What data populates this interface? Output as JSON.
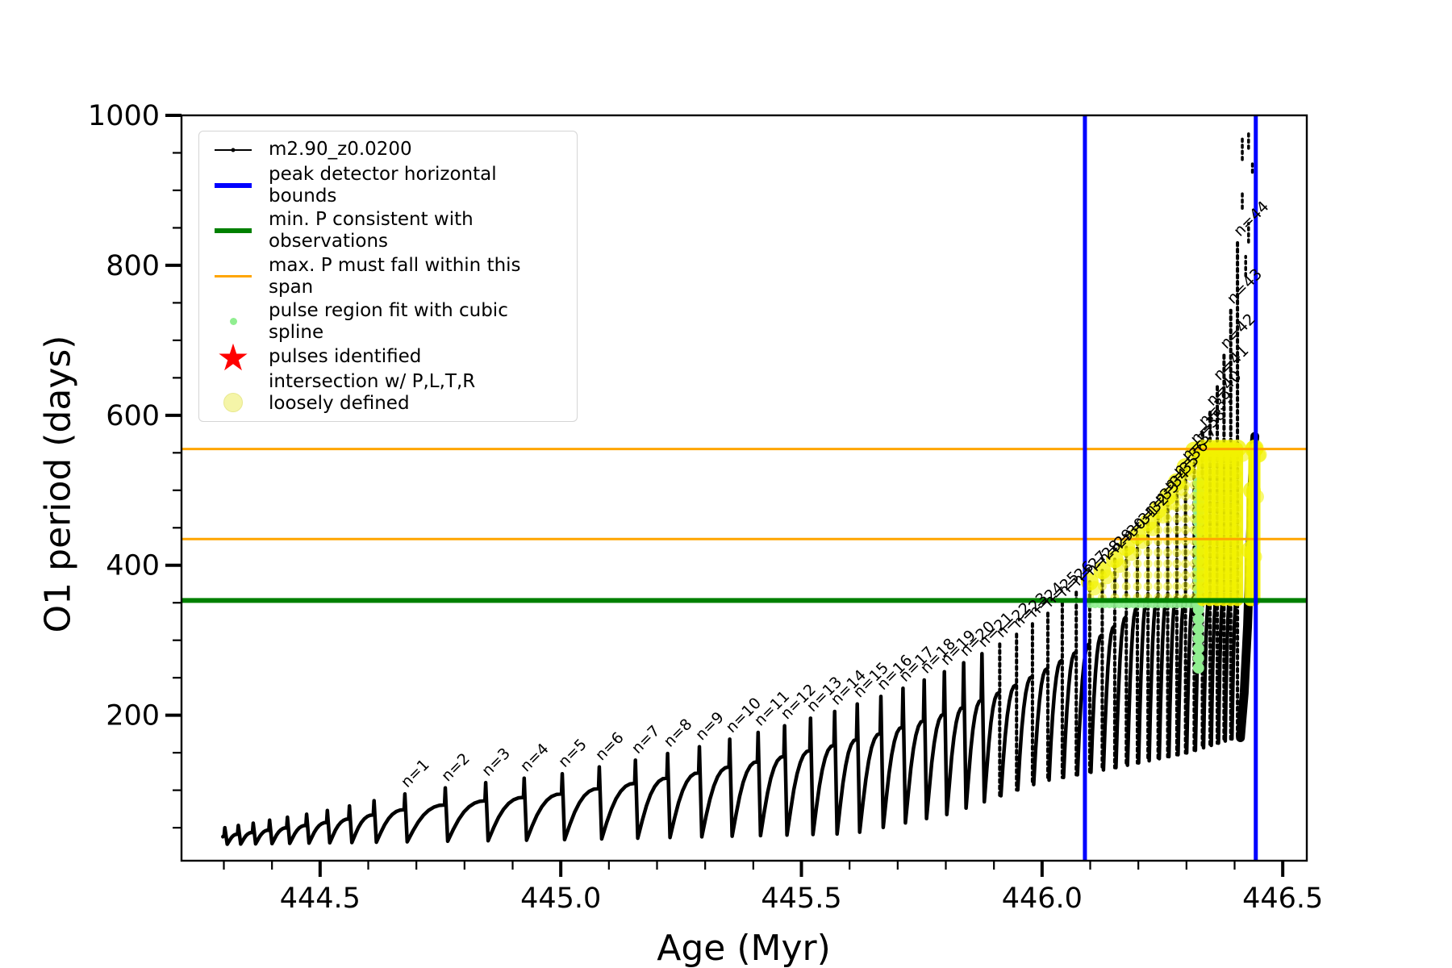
{
  "figure": {
    "xlabel": "Age (Myr)",
    "ylabel": "O1 period (days)",
    "background": "#ffffff"
  },
  "legend": {
    "items": [
      {
        "label": "m2.90_z0.0200",
        "marker": "line-dot",
        "color": "#000000"
      },
      {
        "label": "peak detector horizontal bounds",
        "marker": "thick-line",
        "color": "#0000ff"
      },
      {
        "label": "min. P consistent with observations",
        "marker": "thick-line",
        "color": "#008000"
      },
      {
        "label": "max. P must fall within this span",
        "marker": "med-line",
        "color": "#ffa500"
      },
      {
        "label": "pulse region fit with cubic spline",
        "marker": "dot-small",
        "color": "#90ee90"
      },
      {
        "label": "pulses identified",
        "marker": "star",
        "color": "#ff0000"
      },
      {
        "label": "intersection w/ P,L,T,R\nloosely defined",
        "marker": "dot-large",
        "color": "#f5f5a8"
      }
    ]
  },
  "chart_data": {
    "type": "line",
    "series_label": "m2.90_z0.0200",
    "title": "",
    "xlabel": "Age (Myr)",
    "ylabel": "O1 period (days)",
    "xlim": [
      444.212,
      446.55
    ],
    "ylim": [
      6,
      1000
    ],
    "grid": false,
    "x_major_ticks": [
      444.5,
      445.0,
      445.5,
      446.0,
      446.5
    ],
    "x_tick_labels": [
      "444.5",
      "445.0",
      "445.5",
      "446.0",
      "446.5"
    ],
    "x_minor_step": 0.1,
    "y_major_ticks": [
      200,
      400,
      600,
      800,
      1000
    ],
    "y_tick_labels": [
      "200",
      "400",
      "600",
      "800",
      "1000"
    ],
    "y_minor_step": 50,
    "line_color": "#000000",
    "hlines": [
      {
        "y": 353,
        "color": "#008000",
        "lw": 6,
        "name": "min. P consistent with observations"
      },
      {
        "y": 435,
        "color": "#ffa500",
        "lw": 3,
        "name": "max. P span lower bound"
      },
      {
        "y": 555,
        "color": "#ffa500",
        "lw": 3,
        "name": "max. P span upper bound"
      }
    ],
    "vlines": [
      {
        "x": 446.089,
        "color": "#0000ff",
        "lw": 5,
        "name": "peak detector left bound"
      },
      {
        "x": 446.444,
        "color": "#0000ff",
        "lw": 5,
        "name": "peak detector right bound"
      }
    ],
    "pre_pulses": [
      {
        "age": 444.302,
        "peak": 50
      },
      {
        "age": 444.33,
        "peak": 53
      },
      {
        "age": 444.361,
        "peak": 56
      },
      {
        "age": 444.395,
        "peak": 60
      },
      {
        "age": 444.432,
        "peak": 64
      },
      {
        "age": 444.472,
        "peak": 68
      },
      {
        "age": 444.515,
        "peak": 73
      },
      {
        "age": 444.561,
        "peak": 79
      },
      {
        "age": 444.612,
        "peak": 86
      }
    ],
    "pulses": [
      {
        "n": 1,
        "label": "n=1",
        "age": 444.676,
        "peak": 95
      },
      {
        "n": 2,
        "label": "n=2",
        "age": 444.76,
        "peak": 103
      },
      {
        "n": 3,
        "label": "n=3",
        "age": 444.844,
        "peak": 110
      },
      {
        "n": 4,
        "label": "n=4",
        "age": 444.924,
        "peak": 116
      },
      {
        "n": 5,
        "label": "n=5",
        "age": 445.003,
        "peak": 122
      },
      {
        "n": 6,
        "label": "n=6",
        "age": 445.08,
        "peak": 131
      },
      {
        "n": 7,
        "label": "n=7",
        "age": 445.155,
        "peak": 140
      },
      {
        "n": 8,
        "label": "n=8",
        "age": 445.222,
        "peak": 149
      },
      {
        "n": 9,
        "label": "n=9",
        "age": 445.288,
        "peak": 158
      },
      {
        "n": 10,
        "label": "n=10",
        "age": 445.351,
        "peak": 168
      },
      {
        "n": 11,
        "label": "n=11",
        "age": 445.41,
        "peak": 177
      },
      {
        "n": 12,
        "label": "n=12",
        "age": 445.465,
        "peak": 186
      },
      {
        "n": 13,
        "label": "n=13",
        "age": 445.519,
        "peak": 196
      },
      {
        "n": 14,
        "label": "n=14",
        "age": 445.569,
        "peak": 205
      },
      {
        "n": 15,
        "label": "n=15",
        "age": 445.616,
        "peak": 215
      },
      {
        "n": 16,
        "label": "n=16",
        "age": 445.665,
        "peak": 225
      },
      {
        "n": 17,
        "label": "n=17",
        "age": 445.711,
        "peak": 236
      },
      {
        "n": 18,
        "label": "n=18",
        "age": 445.755,
        "peak": 247
      },
      {
        "n": 19,
        "label": "n=19",
        "age": 445.797,
        "peak": 258
      },
      {
        "n": 20,
        "label": "n=20",
        "age": 445.837,
        "peak": 270
      },
      {
        "n": 21,
        "label": "n=21",
        "age": 445.875,
        "peak": 282
      },
      {
        "n": 22,
        "label": "n=22",
        "age": 445.912,
        "peak": 295
      },
      {
        "n": 23,
        "label": "n=23",
        "age": 445.947,
        "peak": 308
      },
      {
        "n": 24,
        "label": "n=24",
        "age": 445.98,
        "peak": 322
      },
      {
        "n": 25,
        "label": "n=25",
        "age": 446.012,
        "peak": 336
      },
      {
        "n": 26,
        "label": "n=26",
        "age": 446.042,
        "peak": 350
      },
      {
        "n": 27,
        "label": "n=27",
        "age": 446.071,
        "peak": 364
      },
      {
        "n": 28,
        "label": "n=28",
        "age": 446.099,
        "peak": 378
      },
      {
        "n": 29,
        "label": "n=29",
        "age": 446.125,
        "peak": 393
      },
      {
        "n": 30,
        "label": "n=30",
        "age": 446.151,
        "peak": 408
      },
      {
        "n": 31,
        "label": "n=31",
        "age": 446.175,
        "peak": 424
      },
      {
        "n": 32,
        "label": "n=32",
        "age": 446.198,
        "peak": 440
      },
      {
        "n": 33,
        "label": "n=33",
        "age": 446.22,
        "peak": 457
      },
      {
        "n": 34,
        "label": "n=34",
        "age": 446.241,
        "peak": 474
      },
      {
        "n": 35,
        "label": "n=35",
        "age": 446.261,
        "peak": 492
      },
      {
        "n": 36,
        "label": "n=36",
        "age": 446.28,
        "peak": 511
      },
      {
        "n": 37,
        "label": "n=37",
        "age": 446.298,
        "peak": 531
      },
      {
        "n": 38,
        "label": "n=38",
        "age": 446.316,
        "peak": 553
      },
      {
        "n": 39,
        "label": "n=39",
        "age": 446.333,
        "peak": 577
      },
      {
        "n": 40,
        "label": "n=40",
        "age": 446.349,
        "peak": 604
      },
      {
        "n": 41,
        "label": "n=41",
        "age": 446.364,
        "peak": 638
      },
      {
        "n": 42,
        "label": "n=42",
        "age": 446.378,
        "peak": 680
      },
      {
        "n": 43,
        "label": "n=43",
        "age": 446.392,
        "peak": 740
      },
      {
        "n": 44,
        "label": "n=44",
        "age": 446.406,
        "peak": 830
      }
    ],
    "dip_profile": [
      [
        444.3,
        28
      ],
      [
        445.0,
        34
      ],
      [
        445.6,
        42
      ],
      [
        445.8,
        68
      ],
      [
        446.0,
        112
      ],
      [
        446.15,
        130
      ],
      [
        446.3,
        150
      ],
      [
        446.45,
        180
      ]
    ],
    "dashed_from_age": 445.9,
    "final_rise": [
      [
        446.412,
        170
      ],
      [
        446.42,
        230
      ],
      [
        446.427,
        320
      ],
      [
        446.432,
        420
      ],
      [
        446.436,
        500
      ],
      [
        446.44,
        555
      ],
      [
        446.442,
        572
      ]
    ],
    "high_points": [
      {
        "x": 446.416,
        "y1": 941,
        "y2": 969
      },
      {
        "x": 446.429,
        "y1": 956,
        "y2": 978
      },
      {
        "x": 446.437,
        "y1": 924,
        "y2": 939
      },
      {
        "x": 446.416,
        "y1": 876,
        "y2": 896
      },
      {
        "x": 446.429,
        "y1": 831,
        "y2": 856
      },
      {
        "x": 446.423,
        "y1": 786,
        "y2": 812
      }
    ],
    "spline_fit": {
      "color": "#90ee90",
      "row_y": 348,
      "row_x_range": [
        446.1,
        446.325
      ],
      "column_x": 446.325,
      "column_y_range": [
        263,
        515
      ]
    },
    "intersection_region": {
      "color": "#f2f200",
      "x_min": 446.085,
      "x_max": 446.448,
      "y_min": 353,
      "y_cap": 556,
      "solid_from": 446.33
    }
  }
}
